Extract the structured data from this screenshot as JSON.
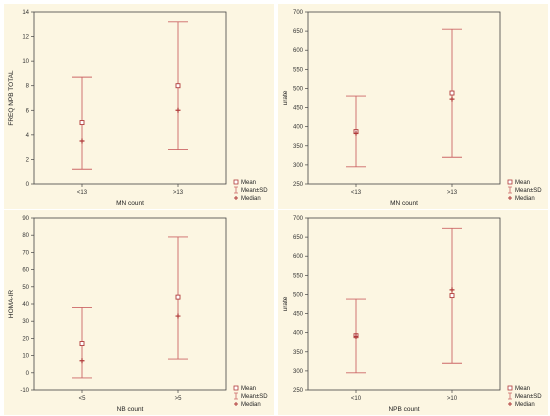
{
  "legend_labels": [
    "Mean",
    "Mean±SD",
    "Median"
  ],
  "colors": {
    "mark": "#b03a3a",
    "bar": "#cc6666",
    "axis": "#444444",
    "panel_bg": "#fcf6e2"
  },
  "chart_data": [
    {
      "type": "errorbar",
      "xlabel": "MN count",
      "ylabel": "FREQ NPB TOTAL",
      "ylim": [
        0,
        14
      ],
      "yticks": [
        0,
        2,
        4,
        6,
        8,
        10,
        12,
        14
      ],
      "categories": [
        "<13",
        ">13"
      ],
      "mean": [
        5.0,
        8.0
      ],
      "sd_lower": [
        1.2,
        2.8
      ],
      "sd_upper": [
        8.7,
        13.2
      ],
      "median": [
        3.5,
        6.0
      ],
      "legend_position": "bottom-right"
    },
    {
      "type": "errorbar",
      "xlabel": "MN count",
      "ylabel": "urate",
      "ylim": [
        250,
        700
      ],
      "yticks": [
        250,
        300,
        350,
        400,
        450,
        500,
        550,
        600,
        650,
        700
      ],
      "categories": [
        "<13",
        ">13"
      ],
      "mean": [
        387,
        488
      ],
      "sd_lower": [
        295,
        320
      ],
      "sd_upper": [
        480,
        655
      ],
      "median": [
        383,
        472
      ],
      "legend_position": "bottom-right"
    },
    {
      "type": "errorbar",
      "xlabel": "NB count",
      "ylabel": "HOMA-IR",
      "ylim": [
        -10,
        90
      ],
      "yticks": [
        -10,
        0,
        10,
        20,
        30,
        40,
        50,
        60,
        70,
        80,
        90
      ],
      "categories": [
        "<5",
        ">5"
      ],
      "mean": [
        17,
        44
      ],
      "sd_lower": [
        -3,
        8
      ],
      "sd_upper": [
        38,
        79
      ],
      "median": [
        7,
        33
      ],
      "legend_position": "bottom-right"
    },
    {
      "type": "errorbar",
      "xlabel": "NPB count",
      "ylabel": "urate",
      "ylim": [
        250,
        700
      ],
      "yticks": [
        250,
        300,
        350,
        400,
        450,
        500,
        550,
        600,
        650,
        700
      ],
      "categories": [
        "<10",
        ">10"
      ],
      "mean": [
        392,
        497
      ],
      "sd_lower": [
        295,
        320
      ],
      "sd_upper": [
        488,
        673
      ],
      "median": [
        390,
        512
      ],
      "legend_position": "bottom-right"
    }
  ]
}
